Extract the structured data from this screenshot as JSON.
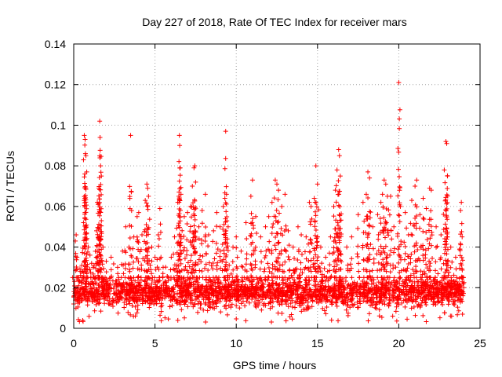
{
  "chart_data": {
    "type": "scatter",
    "title": "Day 227 of 2018, Rate Of TEC Index for receiver mars",
    "xlabel": "GPS time / hours",
    "ylabel": "ROTI / TECUs",
    "xlim": [
      0,
      25
    ],
    "ylim": [
      0,
      0.14
    ],
    "grid": true,
    "marker": "+",
    "color": "#ff0000",
    "xticks": [
      {
        "value": 0,
        "label": "0"
      },
      {
        "value": 5,
        "label": "5"
      },
      {
        "value": 10,
        "label": "10"
      },
      {
        "value": 15,
        "label": "15"
      },
      {
        "value": 20,
        "label": "20"
      },
      {
        "value": 25,
        "label": "25"
      }
    ],
    "yticks": [
      {
        "value": 0,
        "label": "0"
      },
      {
        "value": 0.02,
        "label": "0.02"
      },
      {
        "value": 0.04,
        "label": "0.04"
      },
      {
        "value": 0.06,
        "label": "0.06"
      },
      {
        "value": 0.08,
        "label": "0.08"
      },
      {
        "value": 0.1,
        "label": "0.1"
      },
      {
        "value": 0.12,
        "label": "0.12"
      },
      {
        "value": 0.14,
        "label": "0.14"
      }
    ],
    "series": [
      {
        "name": "ROTI",
        "points": [
          [
            0.0,
            0.012
          ],
          [
            0.1,
            0.043
          ],
          [
            0.15,
            0.046
          ],
          [
            0.2,
            0.035
          ],
          [
            0.3,
            0.021
          ],
          [
            0.4,
            0.028
          ],
          [
            0.5,
            0.031
          ],
          [
            0.6,
            0.052
          ],
          [
            0.65,
            0.095
          ],
          [
            0.7,
            0.093
          ],
          [
            0.72,
            0.086
          ],
          [
            0.75,
            0.085
          ],
          [
            0.8,
            0.077
          ],
          [
            0.9,
            0.04
          ],
          [
            1.0,
            0.036
          ],
          [
            1.1,
            0.032
          ],
          [
            1.2,
            0.03
          ],
          [
            1.4,
            0.048
          ],
          [
            1.45,
            0.062
          ],
          [
            1.5,
            0.061
          ],
          [
            1.55,
            0.069
          ],
          [
            1.6,
            0.102
          ],
          [
            1.62,
            0.094
          ],
          [
            1.65,
            0.08
          ],
          [
            1.7,
            0.075
          ],
          [
            1.8,
            0.04
          ],
          [
            2.0,
            0.033
          ],
          [
            2.3,
            0.035
          ],
          [
            2.7,
            0.03
          ],
          [
            3.0,
            0.038
          ],
          [
            3.2,
            0.05
          ],
          [
            3.4,
            0.04
          ],
          [
            3.5,
            0.095
          ],
          [
            3.7,
            0.045
          ],
          [
            3.9,
            0.055
          ],
          [
            4.0,
            0.057
          ],
          [
            4.2,
            0.046
          ],
          [
            4.4,
            0.063
          ],
          [
            4.5,
            0.071
          ],
          [
            4.55,
            0.069
          ],
          [
            4.6,
            0.065
          ],
          [
            4.8,
            0.04
          ],
          [
            5.0,
            0.035
          ],
          [
            5.2,
            0.046
          ],
          [
            5.3,
            0.059
          ],
          [
            5.5,
            0.03
          ],
          [
            6.0,
            0.035
          ],
          [
            6.2,
            0.045
          ],
          [
            6.4,
            0.062
          ],
          [
            6.5,
            0.095
          ],
          [
            6.52,
            0.09
          ],
          [
            6.55,
            0.079
          ],
          [
            6.6,
            0.066
          ],
          [
            6.8,
            0.055
          ],
          [
            7.0,
            0.057
          ],
          [
            7.2,
            0.06
          ],
          [
            7.3,
            0.07
          ],
          [
            7.4,
            0.079
          ],
          [
            7.45,
            0.08
          ],
          [
            7.5,
            0.072
          ],
          [
            7.7,
            0.05
          ],
          [
            7.9,
            0.058
          ],
          [
            8.1,
            0.066
          ],
          [
            8.3,
            0.046
          ],
          [
            8.6,
            0.048
          ],
          [
            8.8,
            0.057
          ],
          [
            9.0,
            0.05
          ],
          [
            9.2,
            0.06
          ],
          [
            9.3,
            0.064
          ],
          [
            9.35,
            0.097
          ],
          [
            9.4,
            0.066
          ],
          [
            9.5,
            0.05
          ],
          [
            9.8,
            0.04
          ],
          [
            10.0,
            0.045
          ],
          [
            10.3,
            0.038
          ],
          [
            10.6,
            0.052
          ],
          [
            10.9,
            0.065
          ],
          [
            11.0,
            0.073
          ],
          [
            11.2,
            0.055
          ],
          [
            11.5,
            0.045
          ],
          [
            11.8,
            0.05
          ],
          [
            12.0,
            0.055
          ],
          [
            12.2,
            0.062
          ],
          [
            12.4,
            0.073
          ],
          [
            12.5,
            0.071
          ],
          [
            12.6,
            0.068
          ],
          [
            12.8,
            0.06
          ],
          [
            13.0,
            0.066
          ],
          [
            13.2,
            0.048
          ],
          [
            13.5,
            0.04
          ],
          [
            13.8,
            0.05
          ],
          [
            14.0,
            0.046
          ],
          [
            14.3,
            0.045
          ],
          [
            14.5,
            0.062
          ],
          [
            14.6,
            0.06
          ],
          [
            14.8,
            0.064
          ],
          [
            14.9,
            0.08
          ],
          [
            15.0,
            0.071
          ],
          [
            15.2,
            0.04
          ],
          [
            15.5,
            0.035
          ],
          [
            15.8,
            0.045
          ],
          [
            16.0,
            0.06
          ],
          [
            16.1,
            0.068
          ],
          [
            16.2,
            0.078
          ],
          [
            16.3,
            0.088
          ],
          [
            16.35,
            0.085
          ],
          [
            16.4,
            0.075
          ],
          [
            16.8,
            0.04
          ],
          [
            17.1,
            0.045
          ],
          [
            17.5,
            0.056
          ],
          [
            17.8,
            0.062
          ],
          [
            18.0,
            0.066
          ],
          [
            18.1,
            0.077
          ],
          [
            18.2,
            0.074
          ],
          [
            18.4,
            0.05
          ],
          [
            18.7,
            0.056
          ],
          [
            18.9,
            0.062
          ],
          [
            19.0,
            0.066
          ],
          [
            19.1,
            0.073
          ],
          [
            19.2,
            0.071
          ],
          [
            19.3,
            0.065
          ],
          [
            19.5,
            0.065
          ],
          [
            19.7,
            0.05
          ],
          [
            20.0,
            0.121
          ],
          [
            20.1,
            0.06
          ],
          [
            20.4,
            0.057
          ],
          [
            20.6,
            0.046
          ],
          [
            20.8,
            0.063
          ],
          [
            21.0,
            0.07
          ],
          [
            21.1,
            0.073
          ],
          [
            21.3,
            0.056
          ],
          [
            21.5,
            0.064
          ],
          [
            21.7,
            0.059
          ],
          [
            21.9,
            0.069
          ],
          [
            22.0,
            0.068
          ],
          [
            22.3,
            0.05
          ],
          [
            22.6,
            0.046
          ],
          [
            22.8,
            0.078
          ],
          [
            22.9,
            0.092
          ],
          [
            22.95,
            0.091
          ],
          [
            23.0,
            0.075
          ],
          [
            23.2,
            0.04
          ],
          [
            23.5,
            0.035
          ],
          [
            23.8,
            0.058
          ],
          [
            23.85,
            0.062
          ],
          [
            23.9,
            0.045
          ],
          [
            24.0,
            0.02
          ]
        ]
      }
    ],
    "dense_band": {
      "x_range": [
        0,
        24
      ],
      "y_min": 0.003,
      "y_max": 0.032
    }
  }
}
